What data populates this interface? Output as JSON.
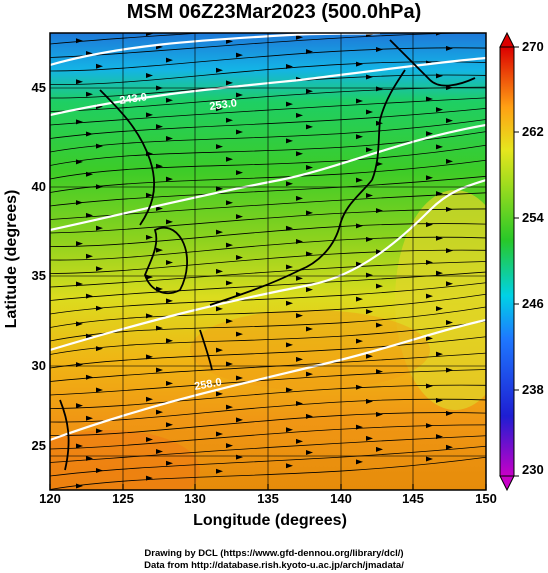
{
  "title": "MSM 06Z23Mar2023 (500.0hPa)",
  "xlabel": "Longitude (degrees)",
  "ylabel": "Latitude  (degrees)",
  "x_ticks": [
    "120",
    "125",
    "130",
    "135",
    "140",
    "145",
    "150"
  ],
  "y_ticks": [
    "45",
    "40",
    "35",
    "30",
    "25"
  ],
  "colorbar_ticks": [
    "270",
    "262",
    "254",
    "246",
    "238",
    "230"
  ],
  "contour_labels": [
    "243.0",
    "253.0",
    "258.0"
  ],
  "footer_line1": "Drawing by DCL (https://www.gfd-dennou.org/library/dcl/)",
  "footer_line2": "Data from http://database.rish.kyoto-u.ac.jp/arch/jmadata/",
  "chart_data": {
    "type": "heatmap",
    "variable": "temperature with wind streamlines",
    "xlim": [
      120,
      150
    ],
    "ylim": [
      23,
      48
    ],
    "clim": [
      230,
      270
    ],
    "colors": {
      "coldest": "#c800c8",
      "cold": "#1e1ed2",
      "cool": "#00c8ff",
      "mid": "#28c828",
      "warm": "#e6e61e",
      "hot": "#ff7800",
      "hottest": "#dc0000"
    }
  }
}
